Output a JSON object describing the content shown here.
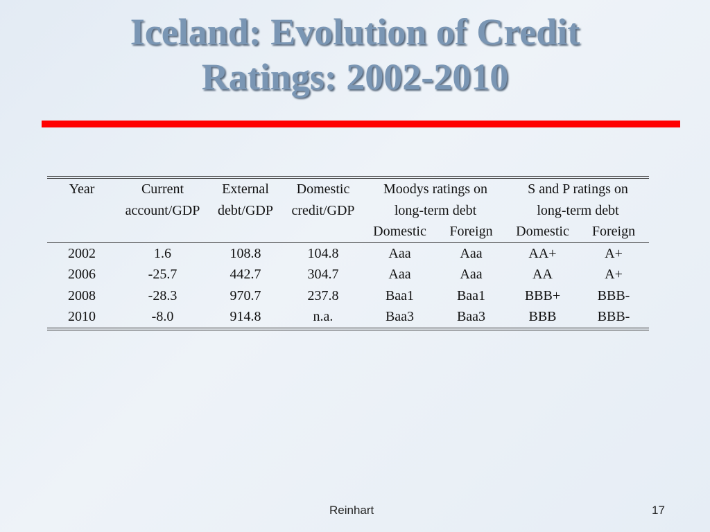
{
  "title_line1": "Iceland: Evolution of Credit",
  "title_line2": "Ratings: 2002-2010",
  "table": {
    "header_row1": [
      "Year",
      "Current",
      "External",
      "Domestic",
      "Moodys ratings on",
      "S and P ratings on"
    ],
    "header_row2": [
      "account/GDP",
      "debt/GDP",
      "credit/GDP",
      "long-term debt",
      "long-term debt"
    ],
    "header_row3": [
      "Domestic",
      "Foreign",
      "Domestic",
      "Foreign"
    ],
    "rows": [
      [
        "2002",
        "1.6",
        "108.8",
        "104.8",
        "Aaa",
        "Aaa",
        "AA+",
        "A+"
      ],
      [
        "2006",
        "-25.7",
        "442.7",
        "304.7",
        "Aaa",
        "Aaa",
        "AA",
        "A+"
      ],
      [
        "2008",
        "-28.3",
        "970.7",
        "237.8",
        "Baa1",
        "Baa1",
        "BBB+",
        "BBB-"
      ],
      [
        "2010",
        "-8.0",
        "914.8",
        "n.a.",
        "Baa3",
        "Baa3",
        "BBB",
        "BBB-"
      ]
    ]
  },
  "footer": {
    "author": "Reinhart",
    "page": "17"
  },
  "colors": {
    "title": "#7a96b4",
    "rule": "#ff0000"
  }
}
